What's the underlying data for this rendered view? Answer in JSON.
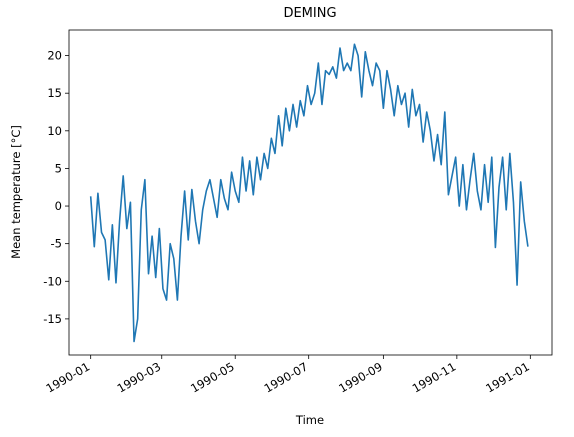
{
  "chart_data": {
    "type": "line",
    "title": "DEMING",
    "x_label": "Time",
    "y_label": "Mean temperature [°C]",
    "x": [
      0,
      3,
      6,
      9,
      12,
      15,
      18,
      21,
      24,
      27,
      30,
      33,
      36,
      39,
      42,
      45,
      48,
      51,
      54,
      57,
      60,
      63,
      66,
      69,
      72,
      75,
      78,
      81,
      84,
      87,
      90,
      93,
      96,
      99,
      102,
      105,
      108,
      111,
      114,
      117,
      120,
      123,
      126,
      129,
      132,
      135,
      138,
      141,
      144,
      147,
      150,
      153,
      156,
      159,
      162,
      165,
      168,
      171,
      174,
      177,
      180,
      183,
      186,
      189,
      192,
      195,
      198,
      201,
      204,
      207,
      210,
      213,
      216,
      219,
      222,
      225,
      228,
      231,
      234,
      237,
      240,
      243,
      246,
      249,
      252,
      255,
      258,
      261,
      264,
      267,
      270,
      273,
      276,
      279,
      282,
      285,
      288,
      291,
      294,
      297,
      300,
      303,
      306,
      309,
      312,
      315,
      318,
      321,
      324,
      327,
      330,
      333,
      336,
      339,
      342,
      345,
      348,
      351,
      354,
      357,
      360,
      363
    ],
    "series": [
      {
        "name": "DEMING",
        "color": "#1f77b4",
        "values": [
          1.3,
          -5.4,
          1.7,
          -3.5,
          -4.5,
          -9.8,
          -2.5,
          -10.2,
          -2,
          4,
          -3,
          0.5,
          -18,
          -15,
          -0.5,
          3.5,
          -9,
          -4,
          -9.5,
          -3,
          -11,
          -12.5,
          -5,
          -7,
          -12.5,
          -4,
          2,
          -4.5,
          2.2,
          -2,
          -5,
          -0.5,
          2,
          3.5,
          1,
          -1.5,
          3.5,
          1,
          -0.5,
          4.5,
          2,
          0.5,
          6.5,
          2,
          6,
          1.5,
          6.5,
          3.5,
          7,
          5,
          9,
          7,
          12,
          8,
          13,
          10,
          13.5,
          10.5,
          14,
          12,
          16,
          13.5,
          15,
          19,
          13.5,
          18,
          17.5,
          18.5,
          17,
          21,
          18,
          19,
          18,
          21.5,
          20,
          14.5,
          20.5,
          18,
          16,
          19,
          18,
          13,
          18,
          15.5,
          12,
          16,
          13.5,
          15,
          10.5,
          15.5,
          12,
          13.5,
          8.5,
          12.5,
          10,
          6,
          9.5,
          5.5,
          12.5,
          1.5,
          4,
          6.5,
          0,
          5.5,
          -0.5,
          3.5,
          7,
          2,
          -0.5,
          5.5,
          0.5,
          6.5,
          -5.5,
          2.5,
          6.5,
          -0.5,
          7,
          0.5,
          -10.5,
          3.2,
          -2,
          -5.4
        ]
      }
    ],
    "xlim": [
      -18,
      383
    ],
    "xticks": [
      {
        "value": 0,
        "label": "1990-01"
      },
      {
        "value": 59,
        "label": "1990-03"
      },
      {
        "value": 120,
        "label": "1990-05"
      },
      {
        "value": 181,
        "label": "1990-07"
      },
      {
        "value": 243,
        "label": "1990-09"
      },
      {
        "value": 304,
        "label": "1990-11"
      },
      {
        "value": 365,
        "label": "1991-01"
      }
    ],
    "ylim": [
      -19.8,
      23.4
    ],
    "yticks": [
      -15,
      -10,
      -5,
      0,
      5,
      10,
      15,
      20
    ],
    "grid": false
  }
}
